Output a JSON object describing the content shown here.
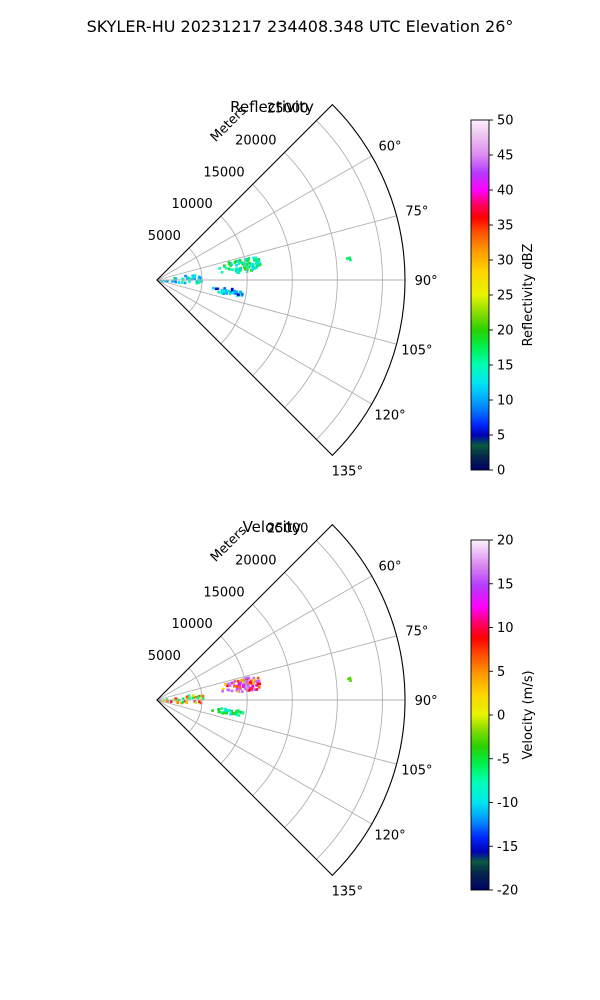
{
  "suptitle": "SKYLER-HU  20231217  234408.348 UTC Elevation 26°",
  "chart_data": [
    {
      "type": "heatmap",
      "subtype": "polar-sector PPI",
      "title": "Reflectivity",
      "range_axis_label": "Meters",
      "range_ticks": [
        5000,
        10000,
        15000,
        20000,
        25000
      ],
      "range_max": 27500,
      "angle_range_deg": [
        45,
        135
      ],
      "angle_ticks": [
        60,
        75,
        90,
        105,
        120,
        135
      ],
      "grid": true,
      "colorbar": {
        "label": "Reflectivity dBZ",
        "min": 0,
        "max": 50,
        "ticks": [
          0,
          5,
          10,
          15,
          20,
          25,
          30,
          35,
          40,
          45,
          50
        ]
      },
      "echo_regions": [
        {
          "az_deg": [
            75,
            84
          ],
          "range_m": [
            6500,
            11500
          ],
          "value_range": [
            10,
            20
          ],
          "dominant_value": 16
        },
        {
          "az_deg": [
            79,
            95
          ],
          "range_m": [
            0,
            5000
          ],
          "value_range": [
            8,
            20
          ],
          "dominant_value": 13
        },
        {
          "az_deg": [
            96,
            101
          ],
          "range_m": [
            5500,
            9500
          ],
          "value_range": [
            3,
            14
          ],
          "dominant_value": 10
        },
        {
          "az_deg": [
            83,
            84
          ],
          "range_m": [
            21000,
            21500
          ],
          "value_range": [
            17,
            17
          ],
          "dominant_value": 17
        }
      ]
    },
    {
      "type": "heatmap",
      "subtype": "polar-sector PPI",
      "title": "Velocity",
      "range_axis_label": "Meters",
      "range_ticks": [
        5000,
        10000,
        15000,
        20000,
        25000
      ],
      "range_max": 27500,
      "angle_range_deg": [
        45,
        135
      ],
      "angle_ticks": [
        60,
        75,
        90,
        105,
        120,
        135
      ],
      "grid": true,
      "colorbar": {
        "label": "Velocity (m/s)",
        "min": -20,
        "max": 20,
        "ticks": [
          -20,
          -15,
          -10,
          -5,
          0,
          5,
          10,
          15,
          20
        ]
      },
      "echo_regions": [
        {
          "az_deg": [
            75,
            84
          ],
          "range_m": [
            6500,
            11500
          ],
          "value_range": [
            -12,
            16
          ],
          "dominant_value": 14
        },
        {
          "az_deg": [
            79,
            95
          ],
          "range_m": [
            0,
            5000
          ],
          "value_range": [
            -10,
            12
          ],
          "dominant_value": 2
        },
        {
          "az_deg": [
            96,
            101
          ],
          "range_m": [
            5500,
            9500
          ],
          "value_range": [
            -15,
            -4
          ],
          "dominant_value": -6
        },
        {
          "az_deg": [
            83,
            84
          ],
          "range_m": [
            21000,
            21500
          ],
          "value_range": [
            -3,
            -3
          ],
          "dominant_value": -3
        }
      ]
    }
  ],
  "colors": {
    "grid": "#b0b0b0",
    "frame": "#000000"
  }
}
